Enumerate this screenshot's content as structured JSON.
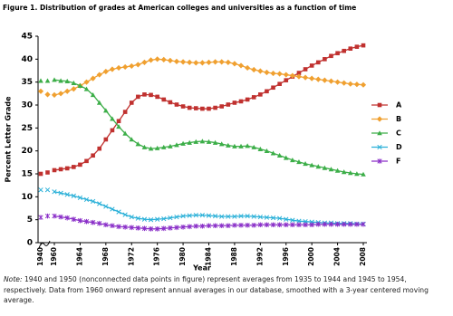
{
  "chart_data": {
    "type": "line",
    "title": "Figure 1. Distribution of grades at American colleges and universities as a function of time",
    "x_label": "Year",
    "y_label": "Percent Letter Grade",
    "x": [
      1940,
      null,
      1950,
      null,
      1960,
      1961,
      1962,
      1963,
      1964,
      1965,
      1966,
      1967,
      1968,
      1969,
      1970,
      1971,
      1972,
      1973,
      1974,
      1975,
      1976,
      1977,
      1978,
      1979,
      1980,
      1981,
      1982,
      1983,
      1984,
      1985,
      1986,
      1987,
      1988,
      1989,
      1990,
      1991,
      1992,
      1993,
      1994,
      1995,
      1996,
      1997,
      1998,
      1999,
      2000,
      2001,
      2002,
      2003,
      2004,
      2005,
      2006,
      2007,
      2008
    ],
    "xlim": [
      1938,
      2009
    ],
    "xticks": [
      1940,
      1960,
      1964,
      1968,
      1972,
      1976,
      1980,
      1984,
      1988,
      1992,
      1996,
      2000,
      2004,
      2008
    ],
    "ylim": [
      0,
      45
    ],
    "yticks": [
      0,
      5,
      10,
      15,
      20,
      25,
      30,
      35,
      40,
      45
    ],
    "legend": "right",
    "series": [
      {
        "name": "A",
        "color": "#c0312f",
        "marker": "square",
        "values": [
          15,
          null,
          15.3,
          null,
          15.8,
          16,
          16.2,
          16.5,
          17,
          17.8,
          19,
          20.5,
          22.5,
          24.5,
          26.5,
          28.5,
          30.5,
          31.8,
          32.3,
          32.2,
          31.8,
          31.2,
          30.6,
          30.1,
          29.7,
          29.4,
          29.3,
          29.2,
          29.2,
          29.4,
          29.7,
          30.1,
          30.5,
          30.8,
          31.2,
          31.7,
          32.3,
          33,
          33.8,
          34.6,
          35.4,
          36.2,
          37,
          37.8,
          38.6,
          39.3,
          40,
          40.7,
          41.3,
          41.8,
          42.3,
          42.7,
          43
        ]
      },
      {
        "name": "B",
        "color": "#f0a030",
        "marker": "diamond",
        "values": [
          33,
          null,
          32.3,
          null,
          32.2,
          32.5,
          33,
          33.5,
          34.2,
          35,
          35.8,
          36.6,
          37.3,
          37.8,
          38.1,
          38.3,
          38.5,
          38.8,
          39.3,
          39.8,
          40,
          39.9,
          39.7,
          39.5,
          39.4,
          39.3,
          39.2,
          39.2,
          39.3,
          39.4,
          39.4,
          39.3,
          39,
          38.6,
          38.1,
          37.7,
          37.4,
          37.1,
          36.9,
          36.8,
          36.6,
          36.4,
          36.2,
          36,
          35.8,
          35.6,
          35.4,
          35.2,
          35,
          34.8,
          34.6,
          34.5,
          34.4
        ]
      },
      {
        "name": "C",
        "color": "#3cae48",
        "marker": "triangle",
        "values": [
          35.3,
          null,
          35.3,
          null,
          35.5,
          35.3,
          35.2,
          34.8,
          34.2,
          33.5,
          32.2,
          30.5,
          28.8,
          27,
          25.3,
          23.8,
          22.5,
          21.5,
          20.8,
          20.5,
          20.6,
          20.8,
          21,
          21.3,
          21.6,
          21.8,
          22,
          22.1,
          22,
          21.8,
          21.5,
          21.2,
          21,
          21,
          21.1,
          20.8,
          20.4,
          20,
          19.5,
          19,
          18.5,
          18,
          17.6,
          17.2,
          16.9,
          16.6,
          16.3,
          16,
          15.7,
          15.4,
          15.2,
          15,
          14.9
        ]
      },
      {
        "name": "D",
        "color": "#2ab0d8",
        "marker": "x",
        "values": [
          11.5,
          null,
          11.5,
          null,
          11.1,
          10.8,
          10.5,
          10.2,
          9.8,
          9.4,
          9,
          8.5,
          7.9,
          7.3,
          6.7,
          6.1,
          5.6,
          5.3,
          5.1,
          5,
          5.1,
          5.2,
          5.4,
          5.6,
          5.8,
          5.9,
          6,
          6,
          5.9,
          5.8,
          5.7,
          5.7,
          5.7,
          5.8,
          5.8,
          5.7,
          5.6,
          5.5,
          5.4,
          5.3,
          5.1,
          4.9,
          4.7,
          4.6,
          4.5,
          4.4,
          4.3,
          4.3,
          4.2,
          4.2,
          4.2,
          4.1,
          4.1
        ]
      },
      {
        "name": "F",
        "color": "#8a2fc8",
        "marker": "star",
        "values": [
          5.5,
          null,
          5.8,
          null,
          5.8,
          5.6,
          5.4,
          5.1,
          4.8,
          4.6,
          4.4,
          4.2,
          3.9,
          3.7,
          3.5,
          3.4,
          3.3,
          3.2,
          3.1,
          3,
          3,
          3.1,
          3.2,
          3.3,
          3.4,
          3.5,
          3.6,
          3.6,
          3.7,
          3.7,
          3.7,
          3.7,
          3.8,
          3.8,
          3.8,
          3.8,
          3.9,
          3.9,
          3.9,
          3.9,
          3.9,
          3.9,
          3.9,
          3.9,
          3.9,
          4,
          4,
          4,
          4,
          4,
          4,
          4,
          4
        ]
      }
    ]
  },
  "note_label": "Note:",
  "note": "1940 and 1950 (nonconnected data points in figure) represent averages from 1935 to 1944 and 1945 to 1954, respectively. Data from 1960 onward represent annual averages in our database, smoothed with a 3-year centered moving average."
}
